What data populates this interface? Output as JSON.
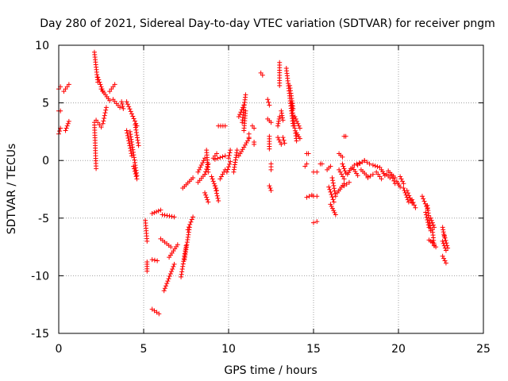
{
  "chart_data": {
    "type": "scatter",
    "title": "Day 280 of 2021, Sidereal Day-to-day VTEC variation (SDTVAR) for receiver pngm",
    "xlabel": "GPS time / hours",
    "ylabel": "SDTVAR / TECUs",
    "xlim": [
      0,
      25
    ],
    "ylim": [
      -15,
      10
    ],
    "xticks": [
      0,
      5,
      10,
      15,
      20,
      25
    ],
    "yticks": [
      -15,
      -10,
      -5,
      0,
      5,
      10
    ],
    "grid": true,
    "marker": "+",
    "color": "#ff0000",
    "series": [
      {
        "name": "SDTVAR",
        "segments": [
          [
            0.0,
            0.1,
            6.2,
            6.4
          ],
          [
            0.0,
            0.1,
            4.3,
            4.3
          ],
          [
            0.0,
            0.1,
            2.3,
            2.8
          ],
          [
            0.3,
            0.6,
            6.0,
            6.6
          ],
          [
            0.4,
            0.6,
            2.6,
            3.4
          ],
          [
            2.1,
            2.3,
            9.4,
            6.8
          ],
          [
            2.3,
            2.6,
            7.2,
            6.0
          ],
          [
            2.1,
            2.2,
            3.3,
            -0.7
          ],
          [
            2.2,
            2.5,
            3.5,
            2.9
          ],
          [
            2.6,
            2.8,
            3.2,
            4.6
          ],
          [
            2.5,
            3.0,
            6.2,
            5.2
          ],
          [
            3.0,
            3.3,
            6.0,
            6.6
          ],
          [
            3.2,
            3.6,
            5.3,
            4.6
          ],
          [
            3.7,
            3.8,
            5.1,
            4.5
          ],
          [
            4.0,
            4.6,
            5.1,
            3.0
          ],
          [
            4.2,
            4.6,
            2.5,
            -1.3
          ],
          [
            4.5,
            4.7,
            3.1,
            1.3
          ],
          [
            4.0,
            4.3,
            2.6,
            0.4
          ],
          [
            4.4,
            4.6,
            -0.5,
            -1.6
          ],
          [
            5.1,
            5.2,
            -5.2,
            -7.0
          ],
          [
            5.2,
            5.2,
            -8.8,
            -9.6
          ],
          [
            5.5,
            6.0,
            -4.6,
            -4.3
          ],
          [
            5.5,
            5.8,
            -8.6,
            -8.7
          ],
          [
            5.5,
            5.9,
            -12.9,
            -13.3
          ],
          [
            6.0,
            6.6,
            -6.8,
            -7.5
          ],
          [
            6.1,
            6.8,
            -4.7,
            -4.9
          ],
          [
            6.2,
            6.8,
            -11.3,
            -9.0
          ],
          [
            6.5,
            7.0,
            -8.4,
            -7.3
          ],
          [
            7.2,
            7.5,
            -10.1,
            -7.4
          ],
          [
            7.4,
            7.7,
            -8.6,
            -5.8
          ],
          [
            7.6,
            7.9,
            -6.0,
            -4.9
          ],
          [
            7.3,
            7.9,
            -2.4,
            -1.5
          ],
          [
            8.2,
            8.6,
            -1.9,
            -1.2
          ],
          [
            8.2,
            8.6,
            -1.0,
            0.2
          ],
          [
            8.6,
            8.8,
            -2.8,
            -3.6
          ],
          [
            8.6,
            8.8,
            -1.2,
            -0.3
          ],
          [
            8.7,
            8.8,
            0.9,
            -1.0
          ],
          [
            9.0,
            9.3,
            -1.4,
            -2.6
          ],
          [
            9.1,
            9.3,
            0.2,
            0.6
          ],
          [
            9.2,
            9.4,
            -2.2,
            -3.5
          ],
          [
            9.4,
            9.8,
            3.0,
            3.0
          ],
          [
            9.2,
            9.8,
            0.1,
            0.4
          ],
          [
            9.5,
            9.8,
            -1.6,
            -0.8
          ],
          [
            9.9,
            10.1,
            -1.0,
            -0.1
          ],
          [
            10.0,
            10.1,
            0.2,
            0.9
          ],
          [
            10.3,
            10.5,
            -1.0,
            0.9
          ],
          [
            10.6,
            10.9,
            3.8,
            4.8
          ],
          [
            10.8,
            11.0,
            3.3,
            5.7
          ],
          [
            10.6,
            11.2,
            0.4,
            1.9
          ],
          [
            10.9,
            11.0,
            2.6,
            4.3
          ],
          [
            11.2,
            11.2,
            2.3,
            2.0
          ],
          [
            11.4,
            11.5,
            3.0,
            2.8
          ],
          [
            11.5,
            11.5,
            1.6,
            1.4
          ],
          [
            11.9,
            12.0,
            7.6,
            7.4
          ],
          [
            12.3,
            12.4,
            5.3,
            4.8
          ],
          [
            12.3,
            12.5,
            3.6,
            3.3
          ],
          [
            12.4,
            12.4,
            2.1,
            1.0
          ],
          [
            12.5,
            12.5,
            -0.3,
            -0.8
          ],
          [
            12.4,
            12.5,
            -2.2,
            -2.6
          ],
          [
            12.9,
            13.0,
            3.0,
            3.8
          ],
          [
            12.9,
            13.1,
            2.0,
            1.4
          ],
          [
            13.0,
            13.0,
            8.5,
            6.5
          ],
          [
            13.1,
            13.2,
            4.3,
            3.5
          ],
          [
            13.2,
            13.3,
            2.0,
            1.5
          ],
          [
            13.4,
            13.8,
            8.0,
            3.0
          ],
          [
            13.6,
            13.8,
            6.5,
            4.5
          ],
          [
            13.7,
            14.0,
            5.0,
            1.7
          ],
          [
            13.9,
            14.2,
            3.8,
            2.8
          ],
          [
            14.0,
            14.2,
            2.4,
            1.9
          ],
          [
            14.5,
            14.6,
            -0.5,
            -0.3
          ],
          [
            14.6,
            14.7,
            0.6,
            0.6
          ],
          [
            14.6,
            14.9,
            -3.2,
            -3.0
          ],
          [
            15.0,
            15.2,
            -5.4,
            -5.3
          ],
          [
            15.0,
            15.2,
            -1.0,
            -1.0
          ],
          [
            15.0,
            15.2,
            -3.1,
            -3.1
          ],
          [
            15.4,
            15.5,
            -0.3,
            -0.3
          ],
          [
            15.8,
            16.0,
            -0.8,
            -0.5
          ],
          [
            15.9,
            16.2,
            -2.3,
            -3.6
          ],
          [
            16.0,
            16.3,
            -3.8,
            -4.7
          ],
          [
            16.1,
            16.3,
            -1.5,
            -3.1
          ],
          [
            16.4,
            16.8,
            -2.8,
            -2.0
          ],
          [
            16.5,
            16.7,
            0.6,
            0.3
          ],
          [
            16.5,
            16.8,
            -0.8,
            -1.6
          ],
          [
            16.7,
            16.9,
            -0.3,
            -1.1
          ],
          [
            16.8,
            16.9,
            2.1,
            2.1
          ],
          [
            16.8,
            17.1,
            -2.2,
            -1.9
          ],
          [
            17.0,
            17.2,
            -1.2,
            -0.7
          ],
          [
            17.3,
            17.6,
            -0.6,
            -1.3
          ],
          [
            17.4,
            17.7,
            -0.4,
            -0.2
          ],
          [
            17.6,
            18.0,
            -0.4,
            0.0
          ],
          [
            17.8,
            18.2,
            -0.8,
            -1.4
          ],
          [
            18.0,
            18.3,
            0.0,
            -0.3
          ],
          [
            18.2,
            18.5,
            -1.5,
            -1.2
          ],
          [
            18.5,
            18.9,
            -0.4,
            -0.6
          ],
          [
            18.7,
            19.0,
            -1.0,
            -1.6
          ],
          [
            19.0,
            19.2,
            -0.8,
            -1.3
          ],
          [
            19.3,
            19.5,
            -1.2,
            -1.5
          ],
          [
            19.4,
            19.8,
            -0.9,
            -1.5
          ],
          [
            19.6,
            19.8,
            -1.3,
            -2.0
          ],
          [
            19.9,
            20.1,
            -1.8,
            -2.3
          ],
          [
            20.1,
            20.3,
            -1.4,
            -2.0
          ],
          [
            20.3,
            20.6,
            -2.4,
            -3.6
          ],
          [
            20.5,
            20.8,
            -2.6,
            -3.7
          ],
          [
            20.8,
            21.0,
            -3.4,
            -4.1
          ],
          [
            21.4,
            21.7,
            -3.1,
            -4.2
          ],
          [
            21.6,
            21.8,
            -4.5,
            -5.8
          ],
          [
            21.7,
            21.9,
            -3.9,
            -6.1
          ],
          [
            21.9,
            22.1,
            -5.0,
            -5.8
          ],
          [
            21.8,
            22.0,
            -6.9,
            -7.1
          ],
          [
            22.0,
            22.1,
            -6.0,
            -7.4
          ],
          [
            22.0,
            22.2,
            -7.1,
            -7.5
          ],
          [
            22.6,
            22.8,
            -7.0,
            -7.8
          ],
          [
            22.6,
            22.7,
            -5.8,
            -6.6
          ],
          [
            22.6,
            22.8,
            -8.3,
            -8.9
          ],
          [
            22.7,
            22.9,
            -6.5,
            -7.6
          ]
        ]
      }
    ]
  }
}
